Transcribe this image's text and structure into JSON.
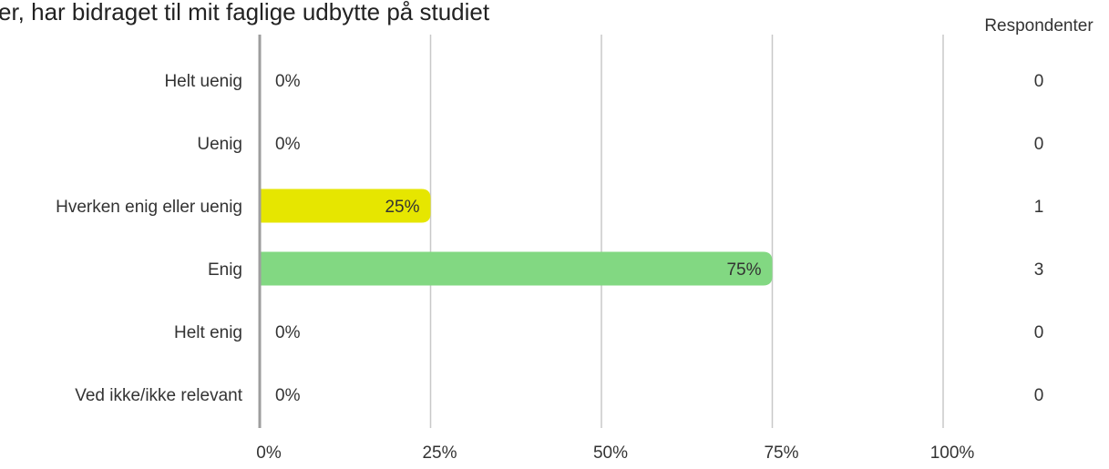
{
  "chart_data": {
    "type": "bar",
    "orientation": "horizontal",
    "title": "er, har bidraget til mit faglige udbytte på studiet",
    "categories": [
      "Helt uenig",
      "Uenig",
      "Hverken enig eller uenig",
      "Enig",
      "Helt enig",
      "Ved ikke/ikke relevant"
    ],
    "values": [
      0,
      0,
      25,
      75,
      0,
      0
    ],
    "value_labels": [
      "0%",
      "0%",
      "25%",
      "75%",
      "0%",
      "0%"
    ],
    "respondents_header": "Respondenter",
    "respondents": [
      "0",
      "0",
      "1",
      "3",
      "0",
      "0"
    ],
    "xlim": [
      0,
      100
    ],
    "x_ticks": [
      0,
      25,
      50,
      75,
      100
    ],
    "x_tick_labels": [
      "0%",
      "25%",
      "50%",
      "75%",
      "100%"
    ],
    "grid": true,
    "bar_colors": [
      "#e6e600",
      "#e6e600",
      "#e6e600",
      "#82d882",
      "#82d882",
      "#cccccc"
    ]
  }
}
